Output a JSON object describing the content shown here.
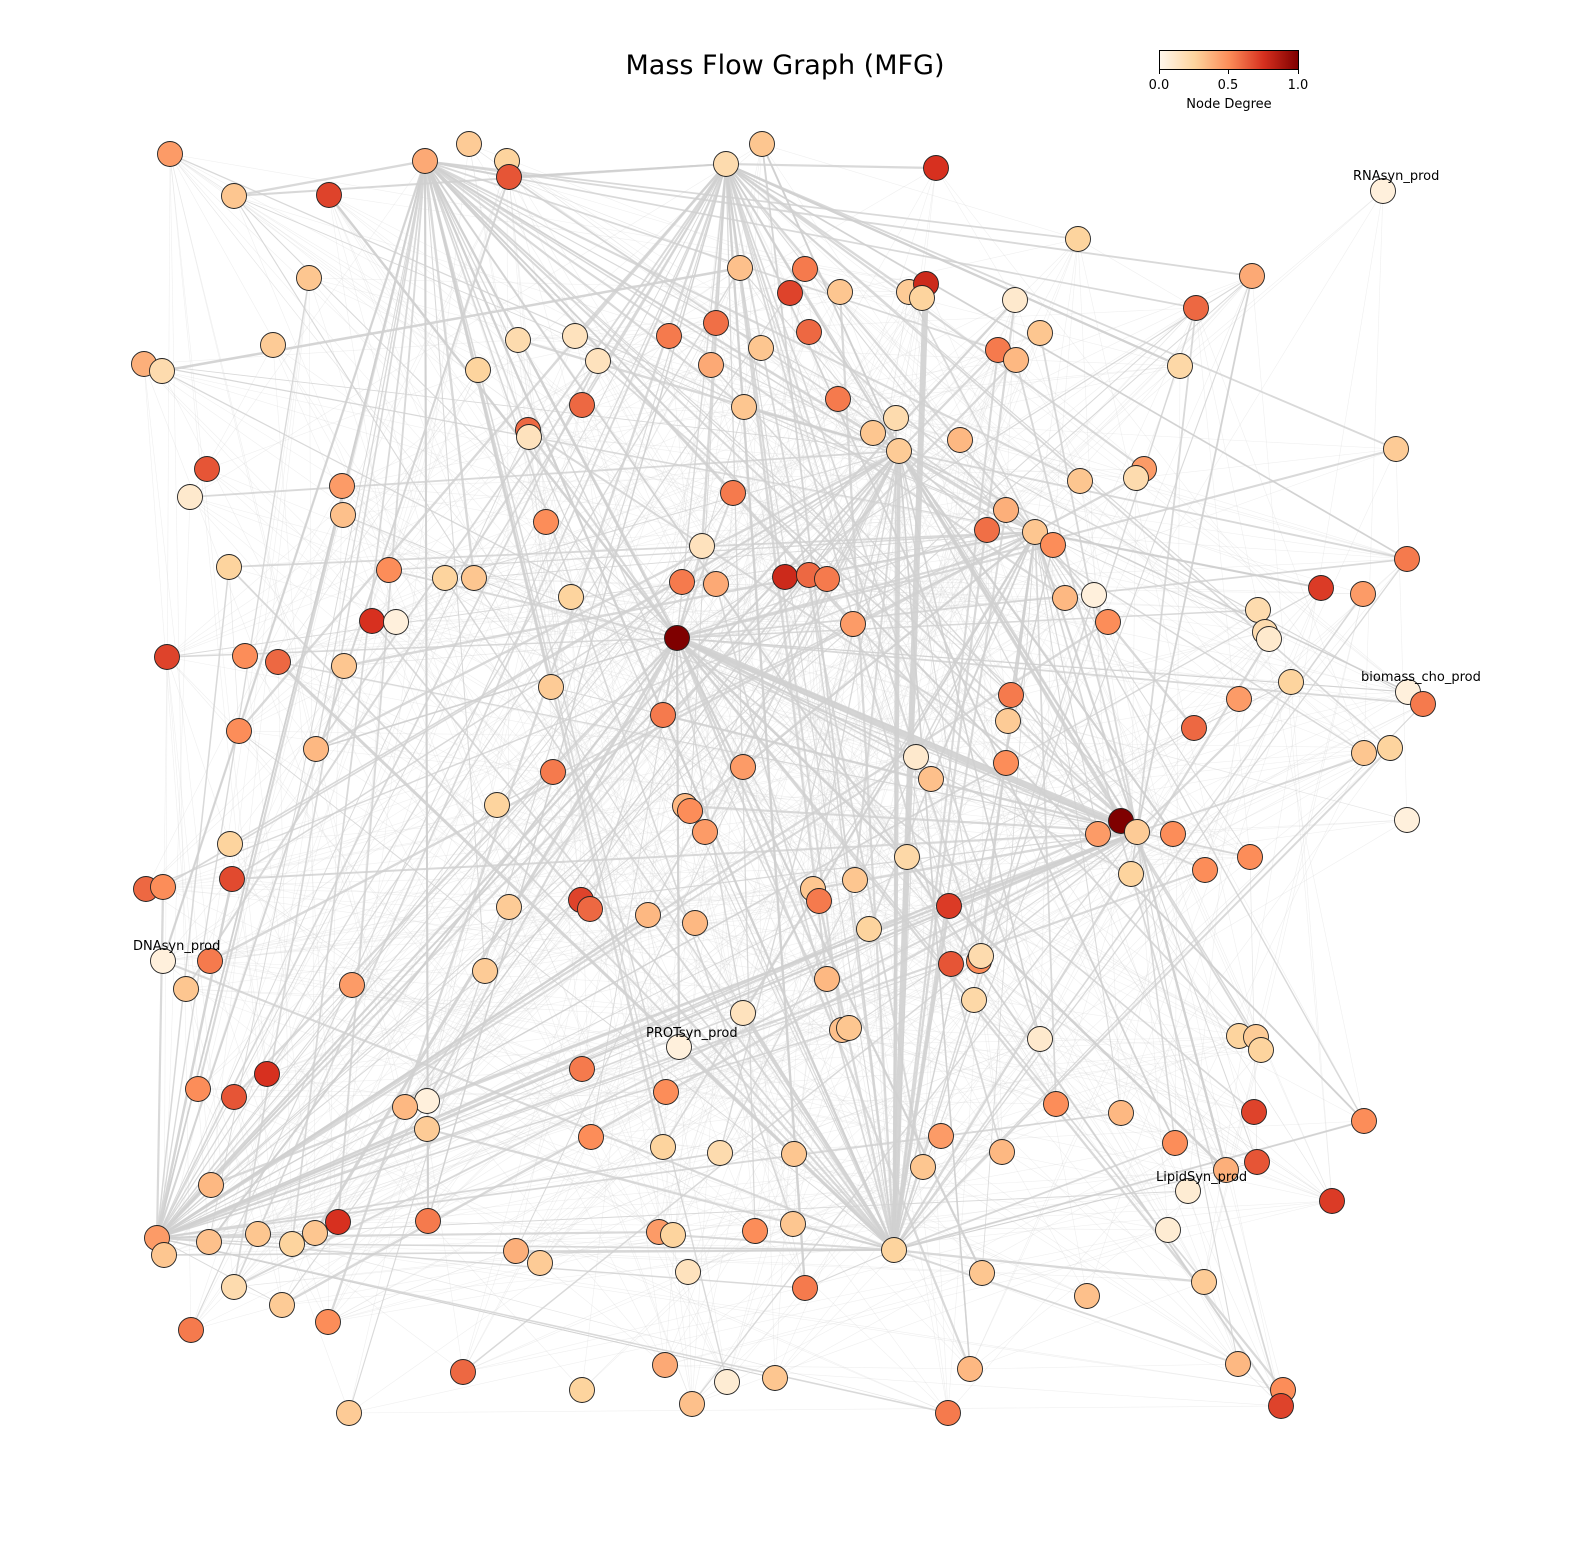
{
  "title": "Mass Flow Graph (MFG)",
  "colorbar": {
    "label": "Node Degree",
    "ticks": [
      "0.0",
      "0.5",
      "1.0"
    ],
    "colormap": "OrRd",
    "range": [
      0,
      1
    ],
    "colors": [
      "#fff7ec",
      "#fdd49e",
      "#fc8d59",
      "#d7301f",
      "#7f0000"
    ]
  },
  "labels": [
    "RNAsyn_prod",
    "biomass_cho_prod",
    "DNAsyn_prod",
    "PROTsyn_prod",
    "LipidSyn_prod"
  ],
  "node_style": {
    "edge_color": "#222222",
    "link_color": "#d0d0d0"
  }
}
